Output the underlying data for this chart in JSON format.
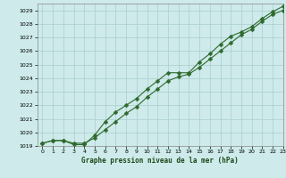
{
  "title": "Graphe pression niveau de la mer (hPa)",
  "bg_color": "#ceeaea",
  "grid_color": "#aacece",
  "line_color": "#2d6a2d",
  "marker_color": "#2d6a2d",
  "xlim": [
    -0.5,
    23
  ],
  "ylim": [
    1019,
    1029.5
  ],
  "xticks": [
    0,
    1,
    2,
    3,
    4,
    5,
    6,
    7,
    8,
    9,
    10,
    11,
    12,
    13,
    14,
    15,
    16,
    17,
    18,
    19,
    20,
    21,
    22,
    23
  ],
  "yticks": [
    1019,
    1020,
    1021,
    1022,
    1023,
    1024,
    1025,
    1026,
    1027,
    1028,
    1029
  ],
  "series1_x": [
    0,
    1,
    2,
    3,
    4,
    5,
    6,
    7,
    8,
    9,
    10,
    11,
    12,
    13,
    14,
    15,
    16,
    17,
    18,
    19,
    20,
    21,
    22,
    23
  ],
  "series1_y": [
    1019.2,
    1019.4,
    1019.4,
    1019.2,
    1019.2,
    1019.6,
    1020.2,
    1020.8,
    1021.4,
    1021.9,
    1022.6,
    1023.2,
    1023.8,
    1024.1,
    1024.3,
    1024.8,
    1025.4,
    1026.0,
    1026.6,
    1027.2,
    1027.6,
    1028.2,
    1028.7,
    1029.0
  ],
  "series2_x": [
    0,
    1,
    2,
    3,
    4,
    5,
    6,
    7,
    8,
    9,
    10,
    11,
    12,
    13,
    14,
    15,
    16,
    17,
    18,
    19,
    20,
    21,
    22,
    23
  ],
  "series2_y": [
    1019.2,
    1019.4,
    1019.4,
    1019.1,
    1019.1,
    1019.8,
    1020.8,
    1021.5,
    1022.0,
    1022.5,
    1023.2,
    1023.8,
    1024.4,
    1024.4,
    1024.4,
    1025.2,
    1025.8,
    1026.5,
    1027.1,
    1027.4,
    1027.8,
    1028.4,
    1028.9,
    1029.3
  ]
}
